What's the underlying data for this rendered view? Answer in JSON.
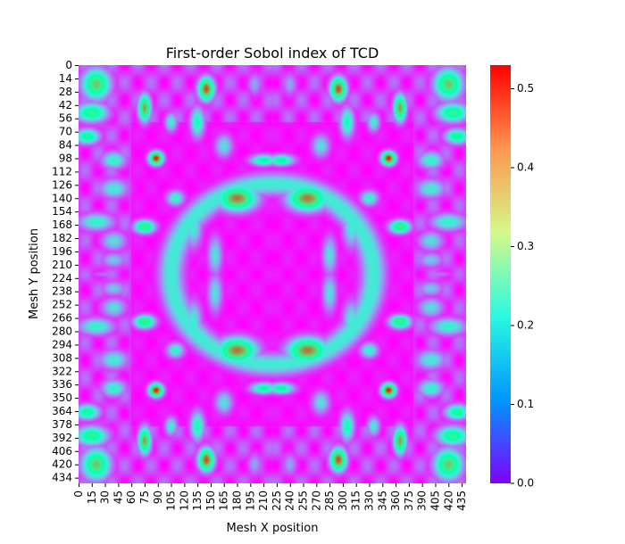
{
  "chart_data": {
    "type": "heatmap",
    "title": "First-order Sobol index of TCD",
    "xlabel": "Mesh X position",
    "ylabel": "Mesh Y position",
    "grid": false,
    "grid_size": 440,
    "x_ticks": [
      "0",
      "15",
      "30",
      "45",
      "60",
      "75",
      "90",
      "105",
      "120",
      "135",
      "150",
      "165",
      "180",
      "195",
      "210",
      "225",
      "240",
      "255",
      "270",
      "285",
      "300",
      "315",
      "330",
      "345",
      "360",
      "375",
      "390",
      "405",
      "420",
      "435"
    ],
    "y_ticks": [
      "0",
      "14",
      "28",
      "42",
      "56",
      "70",
      "84",
      "98",
      "112",
      "126",
      "140",
      "154",
      "168",
      "182",
      "196",
      "210",
      "224",
      "238",
      "252",
      "266",
      "280",
      "294",
      "308",
      "322",
      "336",
      "350",
      "364",
      "378",
      "392",
      "406",
      "420",
      "434"
    ],
    "colorbar": {
      "colormap": "rainbow",
      "vmin": 0.0,
      "vmax": 0.53,
      "ticks": [
        "0.0",
        "0.1",
        "0.2",
        "0.3",
        "0.4",
        "0.5"
      ],
      "colors": [
        "#8000ff",
        "#0096ff",
        "#2af9e0",
        "#d4f98a",
        "#ff9650",
        "#ff0000"
      ]
    },
    "symmetry": "mirror-symmetric about x=220 and y=220",
    "features_quadrant": [
      {
        "x": 180,
        "y": 140,
        "rx": 22,
        "ry": 13,
        "value": 0.45
      },
      {
        "x": 210,
        "y": 100,
        "rx": 15,
        "ry": 6,
        "value": 0.28
      },
      {
        "x": 88,
        "y": 98,
        "rx": 8,
        "ry": 7,
        "value": 0.52
      },
      {
        "x": 75,
        "y": 45,
        "rx": 7,
        "ry": 14,
        "value": 0.42
      },
      {
        "x": 145,
        "y": 25,
        "rx": 9,
        "ry": 12,
        "value": 0.48
      },
      {
        "x": 20,
        "y": 20,
        "rx": 16,
        "ry": 16,
        "value": 0.38
      },
      {
        "x": 15,
        "y": 50,
        "rx": 18,
        "ry": 10,
        "value": 0.32
      },
      {
        "x": 10,
        "y": 75,
        "rx": 14,
        "ry": 8,
        "value": 0.3
      },
      {
        "x": 40,
        "y": 100,
        "rx": 14,
        "ry": 9,
        "value": 0.22
      },
      {
        "x": 40,
        "y": 130,
        "rx": 16,
        "ry": 10,
        "value": 0.2
      },
      {
        "x": 20,
        "y": 165,
        "rx": 20,
        "ry": 9,
        "value": 0.22
      },
      {
        "x": 75,
        "y": 170,
        "rx": 12,
        "ry": 7,
        "value": 0.35
      },
      {
        "x": 40,
        "y": 185,
        "rx": 14,
        "ry": 10,
        "value": 0.18
      },
      {
        "x": 40,
        "y": 205,
        "rx": 14,
        "ry": 8,
        "value": 0.15
      },
      {
        "x": 30,
        "y": 225,
        "rx": 16,
        "ry": 7,
        "value": 0.15
      },
      {
        "x": 130,
        "y": 170,
        "rx": 10,
        "ry": 22,
        "value": 0.2
      },
      {
        "x": 135,
        "y": 60,
        "rx": 8,
        "ry": 16,
        "value": 0.25
      },
      {
        "x": 105,
        "y": 60,
        "rx": 7,
        "ry": 10,
        "value": 0.2
      },
      {
        "x": 110,
        "y": 140,
        "rx": 10,
        "ry": 8,
        "value": 0.22
      },
      {
        "x": 165,
        "y": 85,
        "rx": 10,
        "ry": 12,
        "value": 0.18
      },
      {
        "x": 95,
        "y": 225,
        "rx": 6,
        "ry": 14,
        "value": 0.12
      },
      {
        "x": 155,
        "y": 200,
        "rx": 8,
        "ry": 20,
        "value": 0.18
      },
      {
        "x": 200,
        "y": 20,
        "rx": 8,
        "ry": 12,
        "value": 0.12
      }
    ]
  }
}
